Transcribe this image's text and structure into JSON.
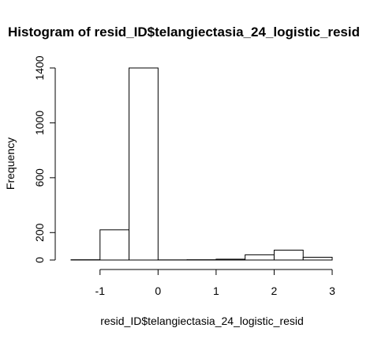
{
  "chart_data": {
    "type": "bar",
    "subtype": "histogram",
    "title": "Histogram of resid_ID$telangiectasia_24_logistic_resid",
    "xlabel": "resid_ID$telangiectasia_24_logistic_resid",
    "ylabel": "Frequency",
    "xlim": [
      -1.5,
      3.0
    ],
    "ylim": [
      0,
      1400
    ],
    "x_ticks": [
      "-1",
      "0",
      "1",
      "2",
      "3"
    ],
    "x_tick_values": [
      -1,
      0,
      1,
      2,
      3
    ],
    "y_ticks": [
      "0",
      "200",
      "600",
      "1000",
      "1400"
    ],
    "y_tick_values": [
      0,
      200,
      600,
      1000,
      1400
    ],
    "bins": [
      {
        "x0": -1.5,
        "x1": -1.0,
        "value": 2
      },
      {
        "x0": -1.0,
        "x1": -0.5,
        "value": 220
      },
      {
        "x0": -0.5,
        "x1": 0.0,
        "value": 1400
      },
      {
        "x0": 0.0,
        "x1": 0.5,
        "value": 1
      },
      {
        "x0": 0.5,
        "x1": 1.0,
        "value": 2
      },
      {
        "x0": 1.0,
        "x1": 1.5,
        "value": 6
      },
      {
        "x0": 1.5,
        "x1": 2.0,
        "value": 38
      },
      {
        "x0": 2.0,
        "x1": 2.5,
        "value": 72
      },
      {
        "x0": 2.5,
        "x1": 3.0,
        "value": 20
      }
    ],
    "grid": false,
    "bar_fill": "#ffffff",
    "bar_stroke": "#000000"
  }
}
